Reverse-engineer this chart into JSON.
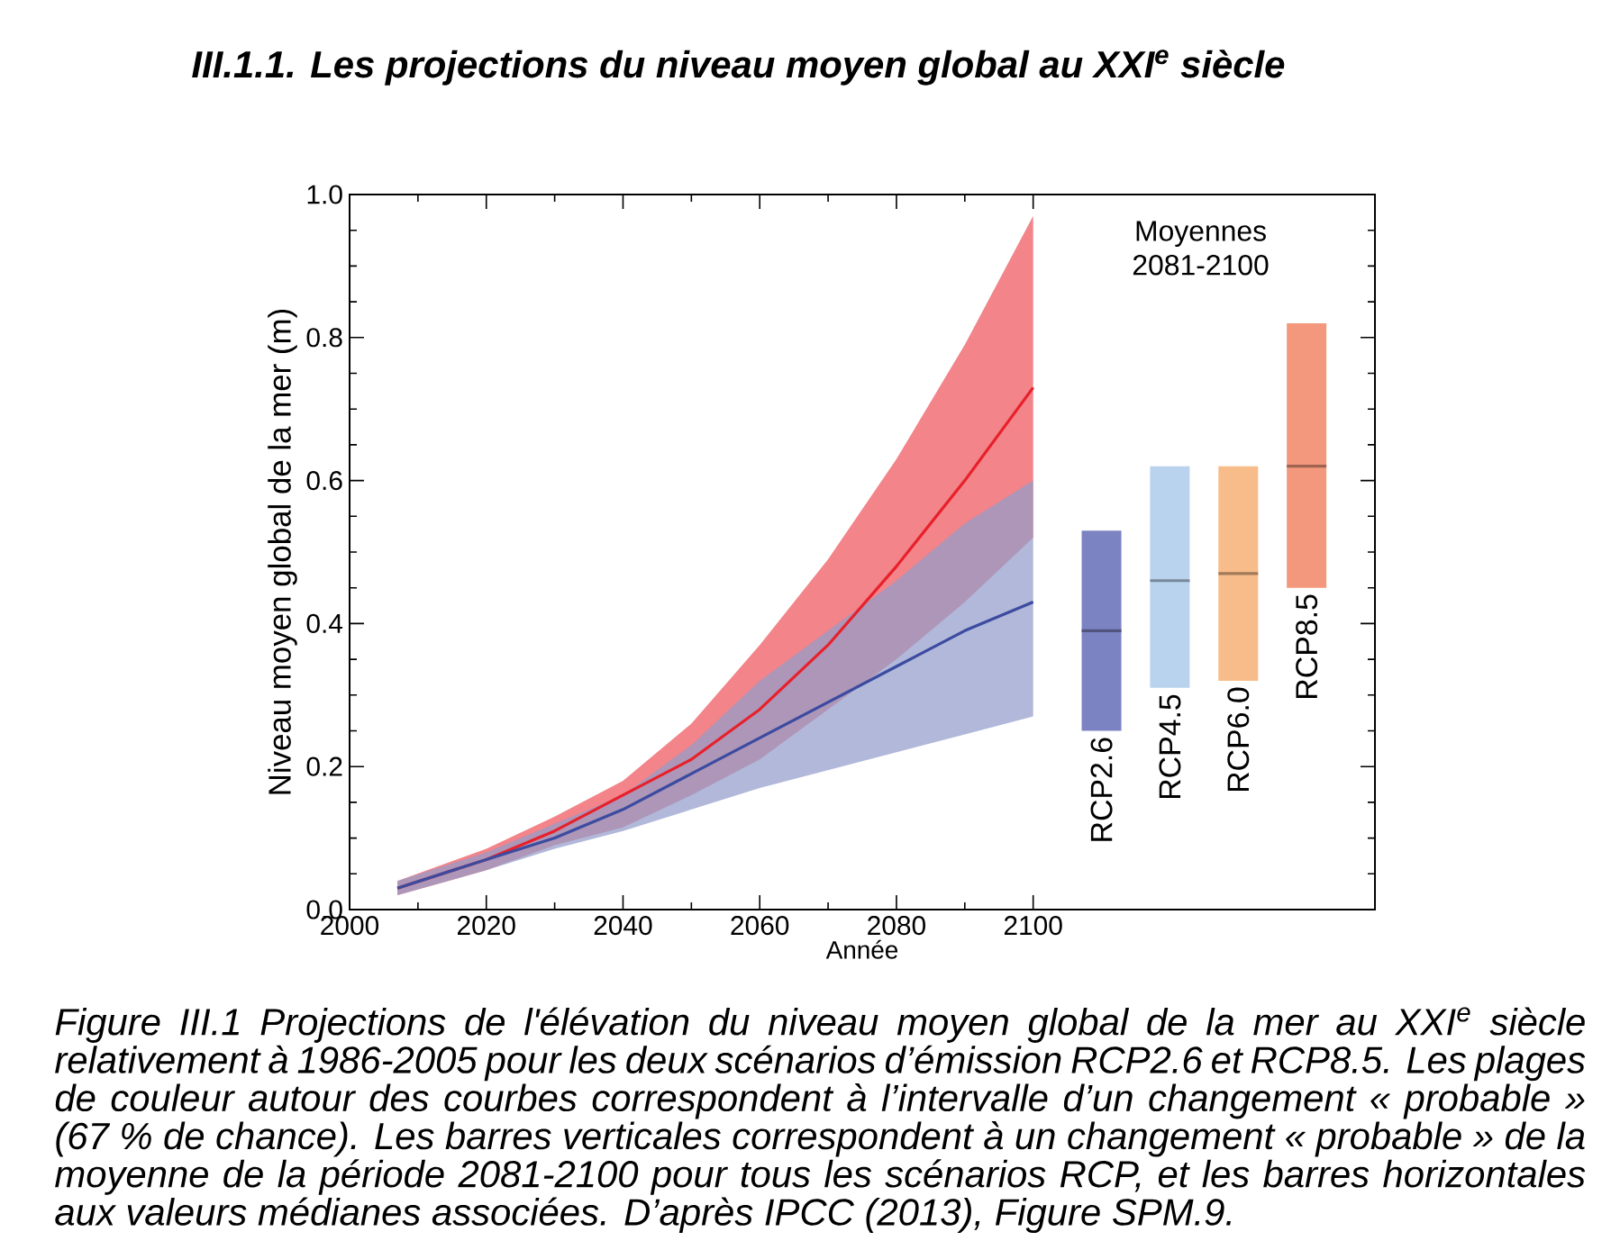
{
  "chart_data": {
    "type": "line",
    "title": "III.1.1.    Les projections du niveau moyen global au XXI$^{e}$ siècle",
    "xlabel": "Année",
    "ylabel": "Niveau moyen global de la mer (m)",
    "xlim": [
      2000,
      2150
    ],
    "ylim": [
      0,
      1
    ],
    "xticks": [
      2000,
      2020,
      2040,
      2060,
      2080,
      2100
    ],
    "yticks": [
      {
        "value": 0,
        "label": "0.0"
      },
      {
        "value": 0.2,
        "label": "0.2"
      },
      {
        "value": 0.4,
        "label": "0.4"
      },
      {
        "value": 0.6,
        "label": "0.6"
      },
      {
        "value": 0.8,
        "label": "0.8"
      },
      {
        "value": 1,
        "label": "1.0"
      }
    ],
    "series": [
      {
        "color": "#e8202a",
        "x": [
          2007,
          2020,
          2030,
          2040,
          2050,
          2060,
          2070,
          2080,
          2090,
          2100
        ],
        "values": [
          0.03,
          0.07,
          0.11,
          0.16,
          0.21,
          0.28,
          0.37,
          0.48,
          0.6,
          0.73
        ],
        "lower": [
          0.02,
          0.055,
          0.09,
          0.115,
          0.16,
          0.21,
          0.28,
          0.35,
          0.43,
          0.52
        ],
        "upper": [
          0.04,
          0.085,
          0.13,
          0.18,
          0.26,
          0.37,
          0.49,
          0.63,
          0.79,
          0.97
        ]
      },
      {
        "color": "#3b4ba0",
        "x": [
          2007,
          2020,
          2030,
          2040,
          2050,
          2060,
          2070,
          2080,
          2090,
          2100
        ],
        "values": [
          0.03,
          0.07,
          0.1,
          0.14,
          0.19,
          0.24,
          0.29,
          0.34,
          0.39,
          0.43
        ],
        "lower": [
          0.02,
          0.055,
          0.085,
          0.11,
          0.14,
          0.17,
          0.195,
          0.22,
          0.245,
          0.27
        ],
        "upper": [
          0.04,
          0.08,
          0.12,
          0.16,
          0.23,
          0.32,
          0.39,
          0.46,
          0.54,
          0.6
        ]
      },
      {
        "type": "box",
        "x": [
          2110,
          2120,
          2130,
          2140
        ],
        "colors": [
          "#7c83c2",
          "#b9d3ef",
          "#f8bc8a",
          "#f3987c"
        ],
        "boxes": [
          {
            "low": 0.25,
            "q1": 0.25,
            "median": 0.39,
            "q3": 0.53,
            "high": 0.53
          },
          {
            "low": 0.31,
            "q1": 0.31,
            "median": 0.46,
            "q3": 0.62,
            "high": 0.62
          },
          {
            "low": 0.32,
            "q1": 0.32,
            "median": 0.47,
            "q3": 0.62,
            "high": 0.62
          },
          {
            "low": 0.45,
            "q1": 0.45,
            "median": 0.62,
            "q3": 0.82,
            "high": 0.82
          }
        ]
      }
    ],
    "annotations": [
      "Moyennes 2081-2100",
      {
        "text": "RCP2.6",
        "x": 2110,
        "y": 0.25
      },
      {
        "text": "RCP4.5",
        "x": 2120,
        "y": 0.31
      },
      {
        "text": "RCP6.0",
        "x": 2130,
        "y": 0.32
      },
      {
        "text": "RCP8.5",
        "x": 2140,
        "y": 0.45
      },
      "Figure III.1 Projections de l'élévation du niveau moyen global de la mer au XXI$^{e}$ siècle relativement à 1986-2005 pour les deux scénarios d’émission RCP2.6 et RCP8.5. Les plages de couleur autour des courbes correspondent à l’intervalle d’un changement « probable » (67 % de chance). Les barres verticales correspondent à un changement « probable » de la moyenne de la période 2081-2100 pour tous les scénarios RCP, et les barres horizontales aux valeurs médianes associées. D’après IPCC (2013), Figure SPM.9."
    ]
  }
}
